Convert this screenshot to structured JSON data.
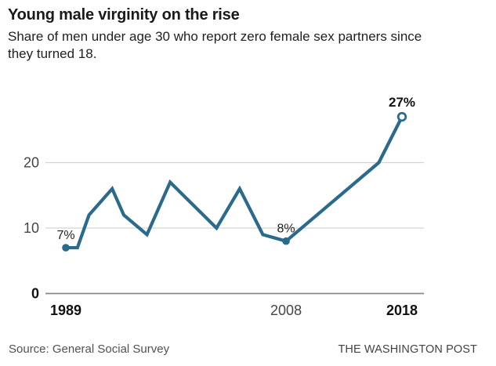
{
  "header": {
    "title": "Young male virginity on the rise",
    "subtitle": "Share of men under age 30 who report zero female sex partners since they turned 18.",
    "subtitle_lines": [
      "Share of men under age 30 who report zero female sex partners since",
      "they turned 18."
    ]
  },
  "chart_data": {
    "type": "line",
    "title": "Young male virginity on the rise",
    "subtitle": "Share of men under age 30 who report zero female sex partners since they turned 18.",
    "unit": "percent",
    "x": [
      1989,
      1990,
      1991,
      1993,
      1994,
      1996,
      1998,
      2002,
      2004,
      2006,
      2008,
      2016,
      2018
    ],
    "values": [
      7,
      7,
      12,
      16,
      12,
      9,
      17,
      10,
      16,
      9,
      8,
      20,
      27
    ],
    "xlim": [
      1989,
      2018
    ],
    "ylim": [
      0,
      28
    ],
    "grid": true,
    "legend": "none",
    "line_color": "#2a6b8d",
    "grid_color": "#d4d4d4",
    "axis_color": "#8a8a8a",
    "y_ticks": [
      {
        "value": 0,
        "label": "0",
        "bold": true
      },
      {
        "value": 10,
        "label": "10",
        "bold": false
      },
      {
        "value": 20,
        "label": "20",
        "bold": false
      }
    ],
    "x_ticks": [
      {
        "value": 1989,
        "label": "1989",
        "bold": true
      },
      {
        "value": 2008,
        "label": "2008",
        "bold": false
      },
      {
        "value": 2018,
        "label": "2018",
        "bold": true
      }
    ],
    "point_labels": [
      {
        "x": 1989,
        "text": "7%",
        "bold": false
      },
      {
        "x": 2008,
        "text": "8%",
        "bold": false
      },
      {
        "x": 2018,
        "text": "27%",
        "bold": true
      }
    ],
    "markers": [
      {
        "x": 1989,
        "style": "filled"
      },
      {
        "x": 2008,
        "style": "filled"
      },
      {
        "x": 2018,
        "style": "open"
      }
    ]
  },
  "footer": {
    "source": "Source: General Social Survey",
    "publisher": "THE WASHINGTON POST"
  }
}
